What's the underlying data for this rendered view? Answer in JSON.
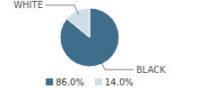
{
  "chart_data": {
    "type": "pie",
    "categories": [
      "BLACK",
      "WHITE"
    ],
    "values": [
      86.0,
      14.0
    ],
    "value_labels": [
      "86.0%",
      "14.0%"
    ],
    "colors": [
      "#3d6e8a",
      "#cfdde6"
    ],
    "legend": "bottom"
  }
}
